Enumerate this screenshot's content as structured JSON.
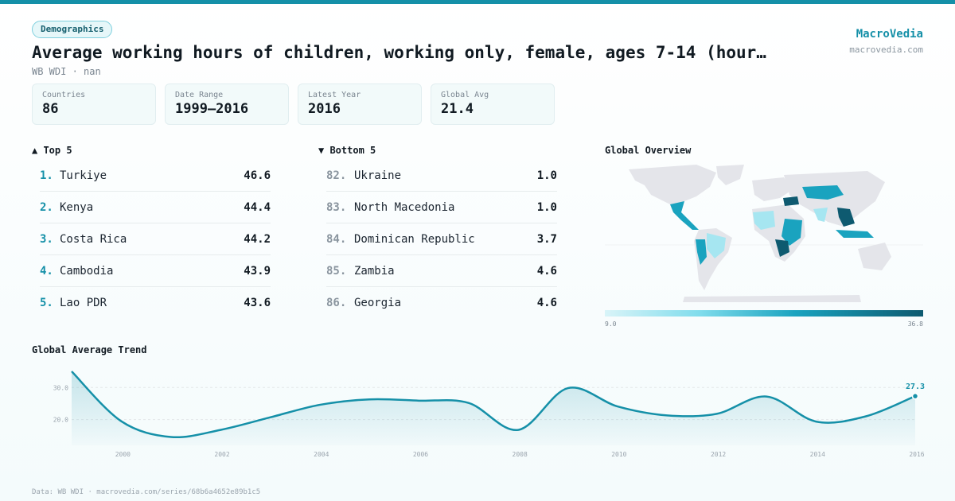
{
  "header": {
    "tag": "Demographics",
    "title": "Average working hours of children, working only, female, ages 7-14 (hour…",
    "subtitle": "WB WDI · nan",
    "brand": "MacroVedia",
    "brand_url": "macrovedia.com"
  },
  "stats": [
    {
      "label": "Countries",
      "value": "86"
    },
    {
      "label": "Date Range",
      "value": "1999–2016"
    },
    {
      "label": "Latest Year",
      "value": "2016"
    },
    {
      "label": "Global Avg",
      "value": "21.4"
    }
  ],
  "top": {
    "heading": "▲ Top 5",
    "items": [
      {
        "rank": "1.",
        "name": "Turkiye",
        "value": "46.6"
      },
      {
        "rank": "2.",
        "name": "Kenya",
        "value": "44.4"
      },
      {
        "rank": "3.",
        "name": "Costa Rica",
        "value": "44.2"
      },
      {
        "rank": "4.",
        "name": "Cambodia",
        "value": "43.9"
      },
      {
        "rank": "5.",
        "name": "Lao PDR",
        "value": "43.6"
      }
    ]
  },
  "bottom": {
    "heading": "▼ Bottom 5",
    "items": [
      {
        "rank": "82.",
        "name": "Ukraine",
        "value": "1.0"
      },
      {
        "rank": "83.",
        "name": "North Macedonia",
        "value": "1.0"
      },
      {
        "rank": "84.",
        "name": "Dominican Republic",
        "value": "3.7"
      },
      {
        "rank": "85.",
        "name": "Zambia",
        "value": "4.6"
      },
      {
        "rank": "86.",
        "name": "Georgia",
        "value": "4.6"
      }
    ]
  },
  "map": {
    "heading": "Global Overview",
    "legend_min": "9.0",
    "legend_max": "36.8",
    "colors": {
      "land": "#e4e5ea",
      "low": "#a6e6f1",
      "mid": "#1aa3bf",
      "high": "#0e5a70"
    }
  },
  "trend": {
    "heading": "Global Average Trend"
  },
  "footer": "Data: WB WDI · macrovedia.com/series/68b6a4652e89b1c5",
  "chart_data": {
    "type": "area",
    "title": "Global Average Trend",
    "x": [
      1999,
      2000,
      2001,
      2002,
      2003,
      2004,
      2005,
      2006,
      2007,
      2008,
      2009,
      2010,
      2011,
      2012,
      2013,
      2014,
      2015,
      2016
    ],
    "values": [
      35.0,
      19.5,
      14.6,
      16.8,
      20.7,
      24.6,
      26.3,
      25.9,
      25.2,
      16.8,
      29.8,
      24.1,
      21.3,
      21.8,
      27.2,
      19.4,
      21.0,
      27.3
    ],
    "yticks": [
      20.0,
      30.0
    ],
    "xticks": [
      2000,
      2002,
      2004,
      2006,
      2008,
      2010,
      2012,
      2014,
      2016
    ],
    "ylim": [
      12,
      36
    ],
    "last_label": "27.3",
    "color": "#1590a8"
  }
}
